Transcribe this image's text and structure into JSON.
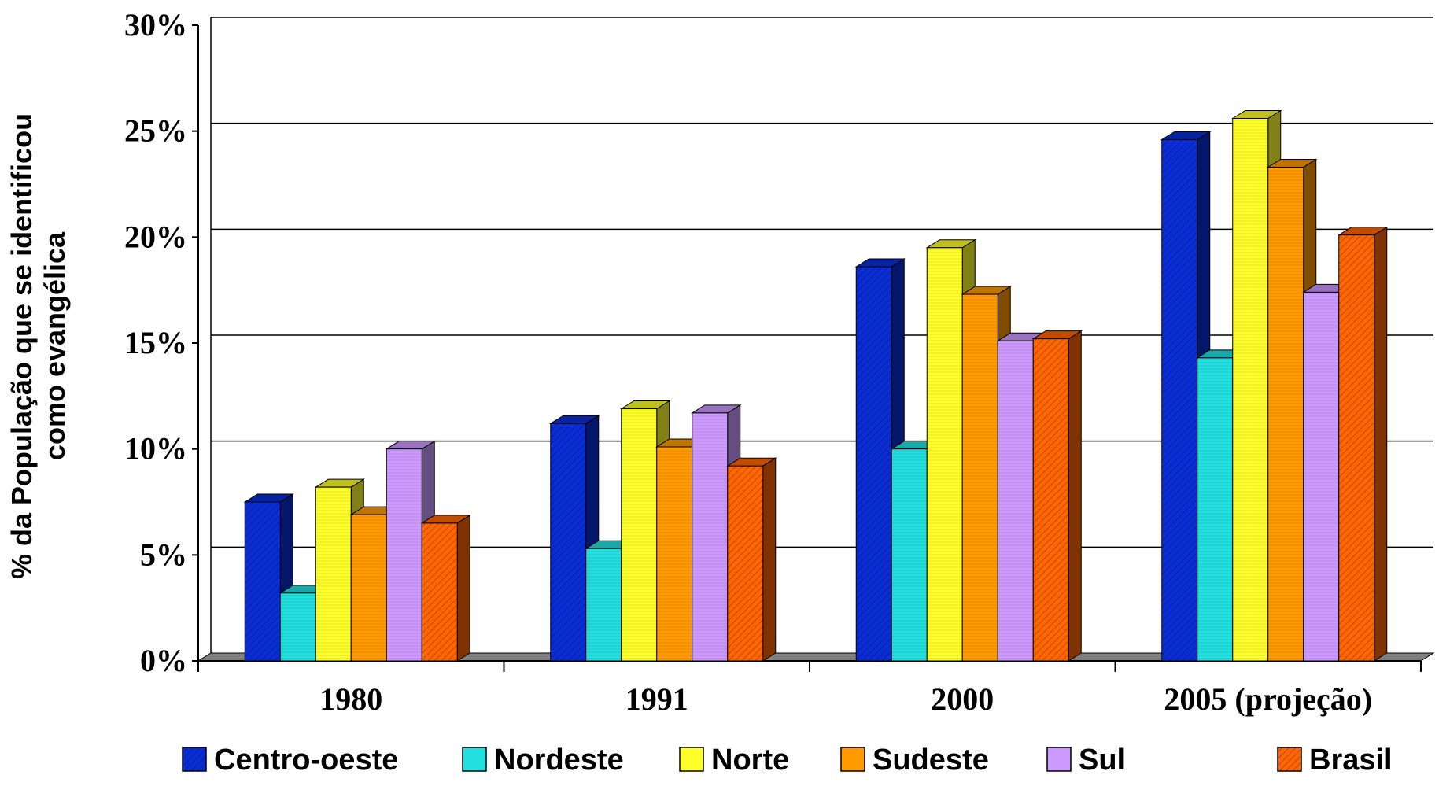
{
  "chart_data": {
    "type": "bar",
    "title": "",
    "xlabel": "",
    "ylabel_lines": [
      "% da População que se identificou",
      "como evangélica"
    ],
    "categories": [
      "1980",
      "1991",
      "2000",
      "2005 (projeção)"
    ],
    "y_ticks": [
      "0%",
      "5%",
      "10%",
      "15%",
      "20%",
      "25%",
      "30%"
    ],
    "ylim": [
      0,
      30
    ],
    "grid": true,
    "legend_position": "bottom",
    "series": [
      {
        "name": "Centro-oeste",
        "color": "#0a2ed6",
        "values": [
          7.5,
          11.2,
          18.6,
          24.6
        ]
      },
      {
        "name": "Nordeste",
        "color": "#22e0e0",
        "values": [
          3.2,
          5.3,
          10.0,
          14.3
        ]
      },
      {
        "name": "Norte",
        "color": "#ffff2a",
        "values": [
          8.2,
          11.9,
          19.5,
          25.6
        ]
      },
      {
        "name": "Sudeste",
        "color": "#ff9a00",
        "values": [
          6.9,
          10.1,
          17.3,
          23.3
        ]
      },
      {
        "name": "Sul",
        "color": "#cc99ff",
        "values": [
          10.0,
          11.7,
          15.1,
          17.4
        ]
      },
      {
        "name": "Brasil",
        "color": "#ff6600",
        "values": [
          6.5,
          9.2,
          15.2,
          20.1
        ]
      }
    ]
  }
}
